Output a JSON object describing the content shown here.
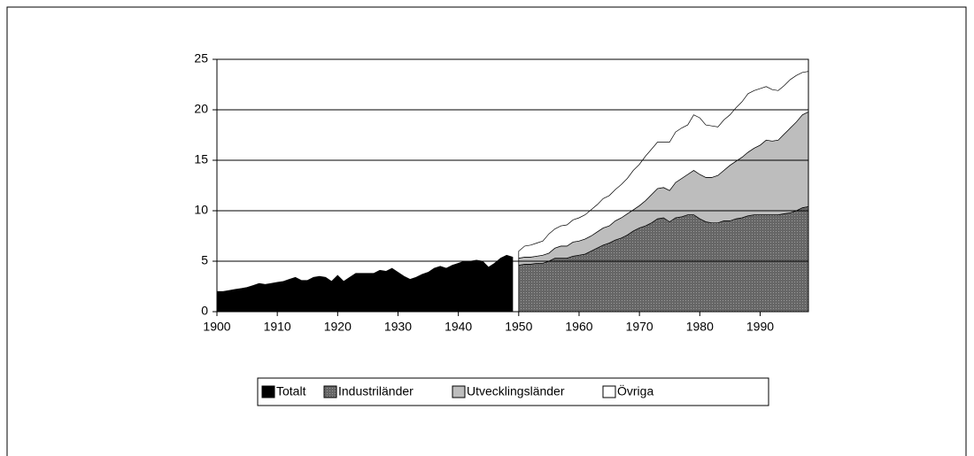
{
  "chart_data": {
    "type": "stacked_area",
    "x": [
      1900,
      1901,
      1902,
      1903,
      1904,
      1905,
      1906,
      1907,
      1908,
      1909,
      1910,
      1911,
      1912,
      1913,
      1914,
      1915,
      1916,
      1917,
      1918,
      1919,
      1920,
      1921,
      1922,
      1923,
      1924,
      1925,
      1926,
      1927,
      1928,
      1929,
      1930,
      1931,
      1932,
      1933,
      1934,
      1935,
      1936,
      1937,
      1938,
      1939,
      1940,
      1941,
      1942,
      1943,
      1944,
      1945,
      1946,
      1947,
      1948,
      1949,
      1950,
      1951,
      1952,
      1953,
      1954,
      1955,
      1956,
      1957,
      1958,
      1959,
      1960,
      1961,
      1962,
      1963,
      1964,
      1965,
      1966,
      1967,
      1968,
      1969,
      1970,
      1971,
      1972,
      1973,
      1974,
      1975,
      1976,
      1977,
      1978,
      1979,
      1980,
      1981,
      1982,
      1983,
      1984,
      1985,
      1986,
      1987,
      1988,
      1989,
      1990,
      1991,
      1992,
      1993,
      1994,
      1995,
      1996,
      1997,
      1998
    ],
    "series": [
      {
        "name": "Totalt",
        "color": "#000000",
        "values": [
          2.0,
          2.0,
          2.1,
          2.2,
          2.3,
          2.4,
          2.6,
          2.8,
          2.7,
          2.8,
          2.9,
          3.0,
          3.2,
          3.4,
          3.1,
          3.1,
          3.4,
          3.5,
          3.4,
          3.0,
          3.6,
          3.0,
          3.4,
          3.8,
          3.8,
          3.8,
          3.8,
          4.1,
          4.0,
          4.3,
          3.9,
          3.5,
          3.2,
          3.4,
          3.7,
          3.9,
          4.3,
          4.5,
          4.3,
          4.6,
          4.8,
          5.0,
          5.0,
          5.1,
          5.0,
          4.4,
          4.8,
          5.3,
          5.6,
          5.4,
          null,
          null,
          null,
          null,
          null,
          null,
          null,
          null,
          null,
          null,
          null,
          null,
          null,
          null,
          null,
          null,
          null,
          null,
          null,
          null,
          null,
          null,
          null,
          null,
          null,
          null,
          null,
          null,
          null,
          null,
          null,
          null,
          null,
          null,
          null,
          null,
          null,
          null,
          null,
          null,
          null,
          null,
          null,
          null,
          null,
          null,
          null,
          null,
          null
        ]
      },
      {
        "name": "Industriländer",
        "color": "#555555",
        "values": [
          null,
          null,
          null,
          null,
          null,
          null,
          null,
          null,
          null,
          null,
          null,
          null,
          null,
          null,
          null,
          null,
          null,
          null,
          null,
          null,
          null,
          null,
          null,
          null,
          null,
          null,
          null,
          null,
          null,
          null,
          null,
          null,
          null,
          null,
          null,
          null,
          null,
          null,
          null,
          null,
          null,
          null,
          null,
          null,
          null,
          null,
          null,
          null,
          null,
          null,
          4.6,
          4.7,
          4.7,
          4.8,
          4.8,
          5.0,
          5.3,
          5.3,
          5.3,
          5.5,
          5.6,
          5.7,
          6.0,
          6.3,
          6.6,
          6.8,
          7.1,
          7.3,
          7.6,
          8.0,
          8.3,
          8.5,
          8.8,
          9.2,
          9.3,
          8.9,
          9.3,
          9.4,
          9.6,
          9.6,
          9.2,
          8.9,
          8.8,
          8.8,
          9.0,
          9.0,
          9.2,
          9.3,
          9.5,
          9.6,
          9.6,
          9.6,
          9.6,
          9.6,
          9.7,
          9.8,
          10.0,
          10.3,
          10.4
        ]
      },
      {
        "name": "Utvecklingsländer",
        "color": "#bdbdbd",
        "values": [
          null,
          null,
          null,
          null,
          null,
          null,
          null,
          null,
          null,
          null,
          null,
          null,
          null,
          null,
          null,
          null,
          null,
          null,
          null,
          null,
          null,
          null,
          null,
          null,
          null,
          null,
          null,
          null,
          null,
          null,
          null,
          null,
          null,
          null,
          null,
          null,
          null,
          null,
          null,
          null,
          null,
          null,
          null,
          null,
          null,
          null,
          null,
          null,
          null,
          null,
          0.7,
          0.7,
          0.7,
          0.7,
          0.8,
          0.8,
          1.0,
          1.2,
          1.2,
          1.4,
          1.4,
          1.5,
          1.5,
          1.6,
          1.7,
          1.7,
          1.9,
          2.0,
          2.1,
          2.1,
          2.2,
          2.5,
          2.8,
          3.0,
          3.0,
          3.1,
          3.5,
          3.8,
          4.0,
          4.4,
          4.4,
          4.4,
          4.5,
          4.7,
          5.0,
          5.5,
          5.7,
          6.0,
          6.3,
          6.6,
          6.9,
          7.4,
          7.3,
          7.4,
          7.9,
          8.4,
          8.8,
          9.2,
          9.4
        ]
      },
      {
        "name": "Övriga",
        "color": "#ffffff",
        "values": [
          null,
          null,
          null,
          null,
          null,
          null,
          null,
          null,
          null,
          null,
          null,
          null,
          null,
          null,
          null,
          null,
          null,
          null,
          null,
          null,
          null,
          null,
          null,
          null,
          null,
          null,
          null,
          null,
          null,
          null,
          null,
          null,
          null,
          null,
          null,
          null,
          null,
          null,
          null,
          null,
          null,
          null,
          null,
          null,
          null,
          null,
          null,
          null,
          null,
          null,
          0.7,
          1.1,
          1.2,
          1.3,
          1.4,
          1.9,
          1.9,
          2.0,
          2.1,
          2.2,
          2.3,
          2.4,
          2.6,
          2.7,
          2.9,
          3.0,
          3.1,
          3.3,
          3.5,
          3.9,
          4.1,
          4.4,
          4.5,
          4.6,
          4.5,
          4.8,
          5.0,
          5.0,
          4.9,
          5.5,
          5.6,
          5.2,
          5.1,
          4.8,
          5.0,
          5.0,
          5.3,
          5.5,
          5.8,
          5.7,
          5.6,
          5.3,
          5.1,
          4.9,
          4.8,
          4.8,
          4.6,
          4.2,
          4.0
        ]
      }
    ],
    "xlim": [
      1900,
      1998
    ],
    "xticks": [
      1900,
      1910,
      1920,
      1930,
      1940,
      1950,
      1960,
      1970,
      1980,
      1990
    ],
    "ylim": [
      0,
      25
    ],
    "yticks": [
      0,
      5,
      10,
      15,
      20,
      25
    ],
    "grid": true,
    "legend": "bottom"
  }
}
